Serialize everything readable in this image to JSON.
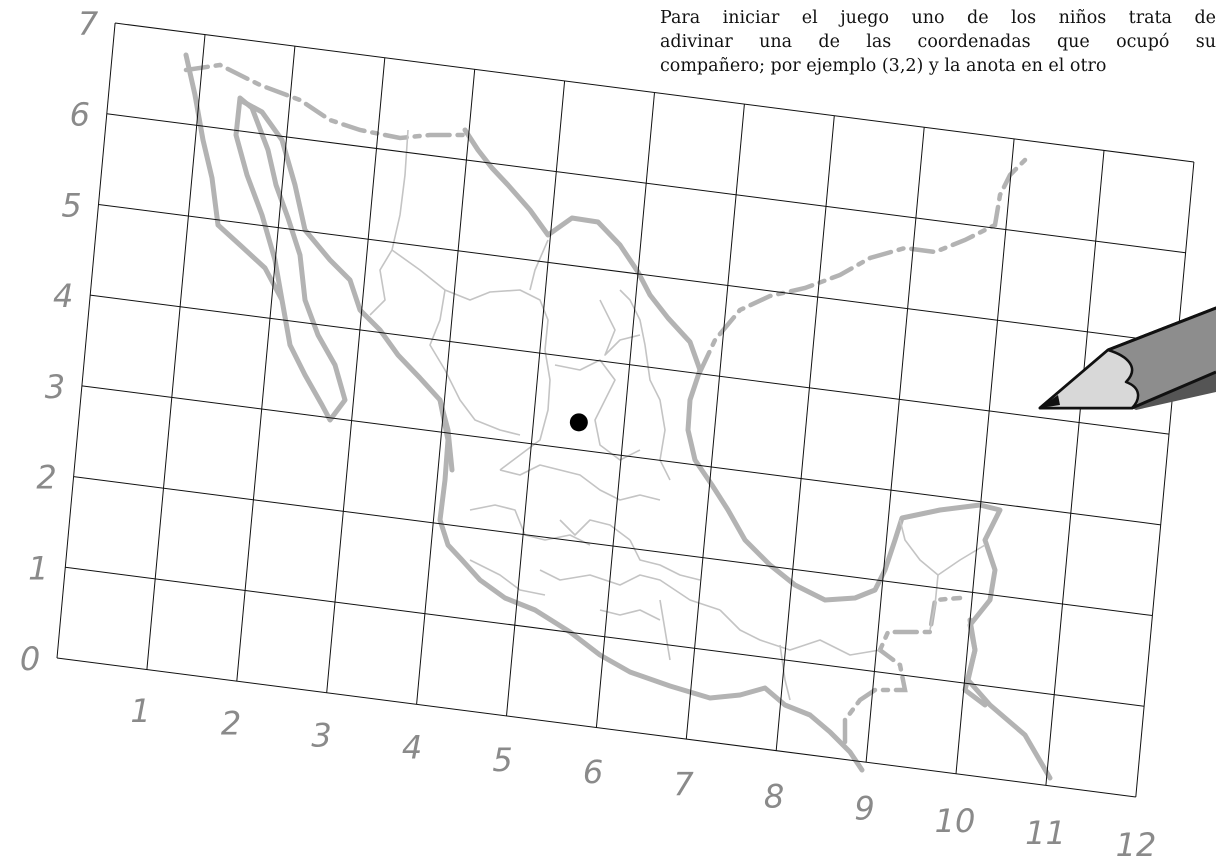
{
  "intro_text": [
    "Para iniciar el juego uno de los niños trata de",
    "adivinar una de las coordenadas que ocupó su",
    "compañero; por ejemplo (3,2) y la anota en el otro"
  ],
  "x_axis_labels": [
    "1",
    "2",
    "3",
    "4",
    "5",
    "6",
    "7",
    "8",
    "9",
    "10",
    "11",
    "12"
  ],
  "y_axis_labels": [
    "0",
    "1",
    "2",
    "3",
    "4",
    "5",
    "6",
    "7"
  ],
  "marked_point": {
    "x": 5.5,
    "y": 3.3
  },
  "colors": {
    "map_outline": "#b3b3b3",
    "grid": "#111111",
    "marker": "#000000"
  },
  "icons": [
    "pencil-icon"
  ]
}
